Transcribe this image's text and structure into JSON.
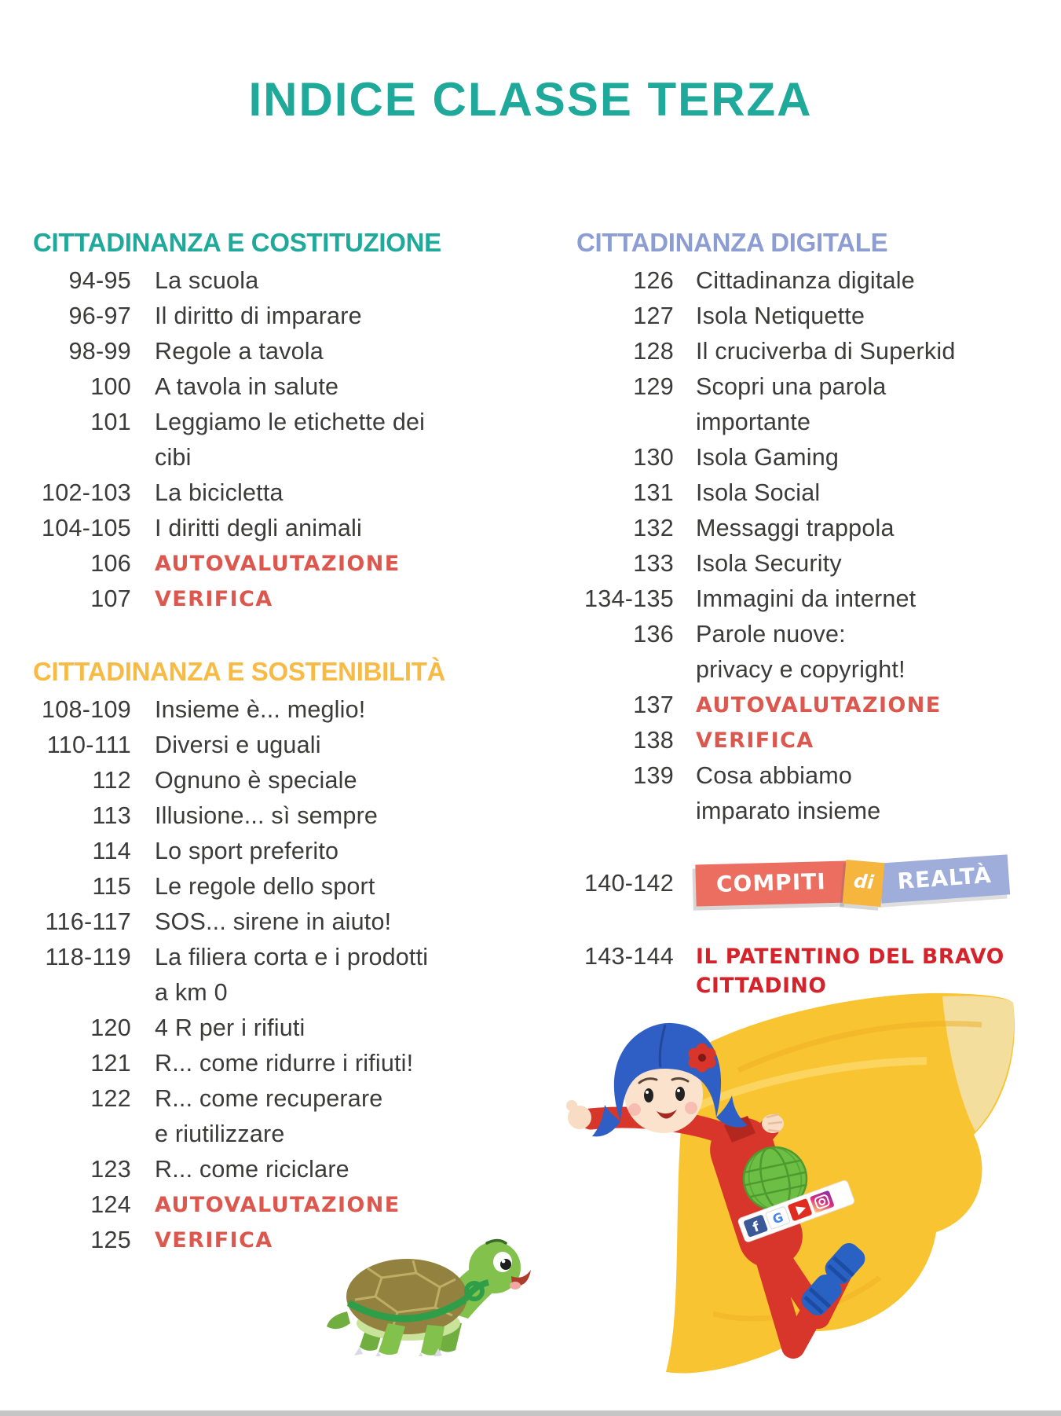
{
  "title": "INDICE CLASSE TERZA",
  "colors": {
    "title_teal": "#1fa99b",
    "heading_teal": "#1fa99b",
    "heading_yellow": "#f7bb45",
    "heading_periwinkle": "#8c9dd4",
    "marker_red": "#dc574e",
    "bright_red": "#d5232b",
    "body_text": "#3b3b3a",
    "bottom_bar": "#c5c5c5"
  },
  "toc": {
    "left": {
      "sections": [
        {
          "heading": "CITTADINANZA E COSTITUZIONE",
          "theme": "teal",
          "entries": [
            {
              "pages": "94-95",
              "lines": [
                "La scuola"
              ]
            },
            {
              "pages": "96-97",
              "lines": [
                "Il diritto di imparare"
              ]
            },
            {
              "pages": "98-99",
              "lines": [
                "Regole a tavola"
              ]
            },
            {
              "pages": "100",
              "lines": [
                "A tavola in salute"
              ]
            },
            {
              "pages": "101",
              "lines": [
                "Leggiamo le etichette dei",
                "cibi"
              ]
            },
            {
              "pages": "102-103",
              "lines": [
                "La bicicletta"
              ]
            },
            {
              "pages": "104-105",
              "lines": [
                "I diritti degli animali"
              ]
            },
            {
              "pages": "106",
              "lines": [
                "AUTOVALUTAZIONE"
              ],
              "style": "marker-red"
            },
            {
              "pages": "107",
              "lines": [
                "VERIFICA"
              ],
              "style": "marker-red"
            }
          ]
        },
        {
          "heading": "CITTADINANZA E SOSTENIBILITÀ",
          "theme": "yellow",
          "entries": [
            {
              "pages": "108-109",
              "lines": [
                "Insieme è... meglio!"
              ]
            },
            {
              "pages": "110-111",
              "lines": [
                "Diversi e uguali"
              ]
            },
            {
              "pages": "112",
              "lines": [
                "Ognuno è speciale"
              ]
            },
            {
              "pages": "113",
              "lines": [
                "Illusione... sì sempre"
              ]
            },
            {
              "pages": "114",
              "lines": [
                "Lo sport preferito"
              ]
            },
            {
              "pages": "115",
              "lines": [
                "Le regole dello sport"
              ]
            },
            {
              "pages": "116-117",
              "lines": [
                "SOS... sirene in aiuto!"
              ]
            },
            {
              "pages": "118-119",
              "lines": [
                "La filiera corta e i prodotti",
                "a km 0"
              ]
            },
            {
              "pages": "120",
              "lines": [
                "4 R per i rifiuti"
              ]
            },
            {
              "pages": "121",
              "lines": [
                "R... come ridurre i rifiuti!"
              ]
            },
            {
              "pages": "122",
              "lines": [
                "R... come recuperare",
                "e riutilizzare"
              ]
            },
            {
              "pages": "123",
              "lines": [
                "R... come riciclare"
              ]
            },
            {
              "pages": "124",
              "lines": [
                "AUTOVALUTAZIONE"
              ],
              "style": "marker-red"
            },
            {
              "pages": "125",
              "lines": [
                "VERIFICA"
              ],
              "style": "marker-red"
            }
          ]
        }
      ]
    },
    "right": {
      "sections": [
        {
          "heading": "CITTADINANZA DIGITALE",
          "theme": "periwinkle",
          "entries": [
            {
              "pages": "126",
              "lines": [
                "Cittadinanza digitale"
              ]
            },
            {
              "pages": "127",
              "lines": [
                "Isola Netiquette"
              ]
            },
            {
              "pages": "128",
              "lines": [
                "Il cruciverba di Superkid"
              ]
            },
            {
              "pages": "129",
              "lines": [
                "Scopri una parola",
                "importante"
              ]
            },
            {
              "pages": "130",
              "lines": [
                "Isola Gaming"
              ]
            },
            {
              "pages": "131",
              "lines": [
                "Isola Social"
              ]
            },
            {
              "pages": "132",
              "lines": [
                "Messaggi trappola"
              ]
            },
            {
              "pages": "133",
              "lines": [
                "Isola Security"
              ]
            },
            {
              "pages": "134-135",
              "lines": [
                "Immagini da internet"
              ]
            },
            {
              "pages": "136",
              "lines": [
                "Parole nuove:",
                "privacy e copyright!"
              ]
            },
            {
              "pages": "137",
              "lines": [
                "AUTOVALUTAZIONE"
              ],
              "style": "marker-red"
            },
            {
              "pages": "138",
              "lines": [
                "VERIFICA"
              ],
              "style": "marker-red"
            },
            {
              "pages": "139",
              "lines": [
                "Cosa abbiamo",
                "imparato insieme"
              ]
            }
          ]
        }
      ],
      "extras": {
        "badge_entry": {
          "pages": "140-142",
          "segments": [
            {
              "label": "COMPITI",
              "bg": "#eb6e61"
            },
            {
              "label": "di",
              "bg": "#f6b53c"
            },
            {
              "label": "REALTÀ",
              "bg": "#9eadda"
            }
          ]
        },
        "patentino_entry": {
          "pages": "143-144",
          "lines": [
            "IL PATENTINO DEL BRAVO",
            "CITTADINO"
          ]
        }
      }
    }
  },
  "illustrations": {
    "turtle": "cartoon-turtle-with-green-harness",
    "superkid": "flying-superhero-girl-blue-hair-yellow-cape",
    "superkid_belt_icons": [
      "facebook-icon",
      "google-icon",
      "youtube-icon",
      "instagram-icon"
    ],
    "superkid_chest_icon": "green-globe-icon"
  }
}
